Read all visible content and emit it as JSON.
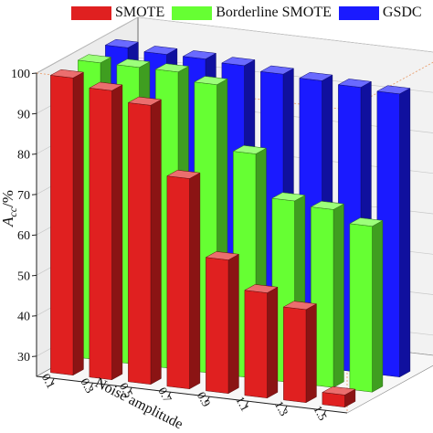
{
  "chart_data": {
    "type": "bar",
    "subtype": "3d-bar",
    "title": "",
    "xlabel": "Noise amplitude",
    "ylabel": "A",
    "ylabel_subscript": "cc",
    "ylabel_suffix": "/%",
    "categories": [
      "0.1",
      "0.3",
      "0.5",
      "0.7",
      "0.9",
      "1.1",
      "1.3",
      "1.5"
    ],
    "ylim": [
      25,
      100
    ],
    "yticks": [
      "30",
      "40",
      "50",
      "60",
      "70",
      "80",
      "90",
      "100"
    ],
    "ytick_values": [
      30,
      40,
      50,
      60,
      70,
      80,
      90,
      100
    ],
    "grid": true,
    "legend_position": "top",
    "series": [
      {
        "name": "SMOTE",
        "color": "#e02020",
        "values": [
          98.5,
          96.5,
          94.0,
          77.0,
          58.0,
          51.0,
          48.0,
          28.0
        ]
      },
      {
        "name": "Borderline SMOTE",
        "color": "#66ff33",
        "values": [
          98.5,
          98.5,
          98.5,
          96.5,
          80.5,
          70.0,
          69.0,
          66.0
        ]
      },
      {
        "name": "GSDC",
        "color": "#1a1aff",
        "values": [
          98.5,
          98.0,
          98.0,
          97.5,
          96.5,
          96.0,
          95.5,
          95.0
        ]
      }
    ]
  }
}
